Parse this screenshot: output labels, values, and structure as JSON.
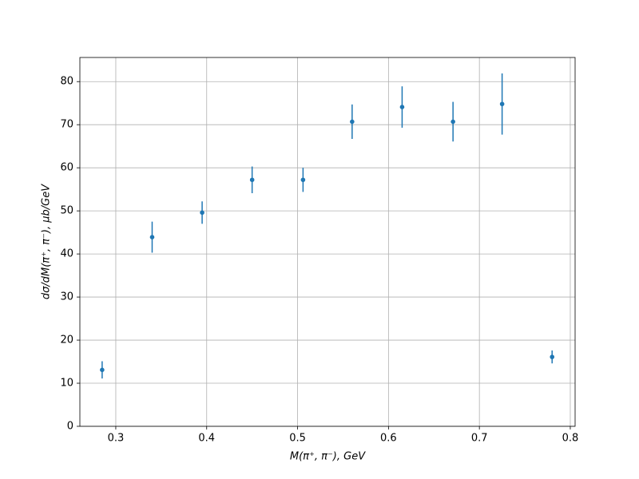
{
  "chart_data": {
    "type": "errorbar",
    "xlabel": "M(π⁺, π⁻), GeV",
    "ylabel": "dσ/dM(π⁺, π⁻), μb/GeV",
    "x": [
      0.285,
      0.34,
      0.395,
      0.45,
      0.506,
      0.56,
      0.615,
      0.671,
      0.725,
      0.78
    ],
    "series": [
      {
        "color": "#1f77b4",
        "values": [
          13.1,
          43.9,
          49.6,
          57.2,
          57.2,
          70.7,
          74.1,
          70.7,
          74.8,
          16.1
        ],
        "errors": [
          2.0,
          3.6,
          2.6,
          3.1,
          2.8,
          4.0,
          4.8,
          4.6,
          7.1,
          1.5
        ]
      }
    ],
    "xlim": [
      0.2605,
      0.8053
    ],
    "xticks": [
      0.3,
      0.4,
      0.5,
      0.6,
      0.7,
      0.8
    ],
    "ylim": [
      0,
      85.6
    ],
    "yticks": [
      0,
      10,
      20,
      30,
      40,
      50,
      60,
      70,
      80
    ],
    "grid": true
  }
}
